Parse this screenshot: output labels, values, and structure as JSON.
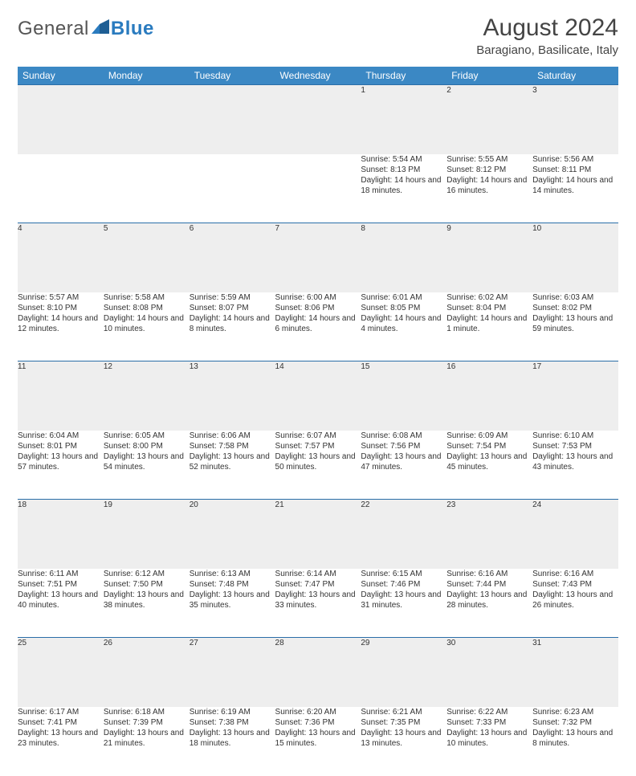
{
  "brand": {
    "general": "General",
    "blue": "Blue"
  },
  "title": "August 2024",
  "location": "Baragiano, Basilicate, Italy",
  "header_bg": "#3b88c4",
  "daynum_bg": "#eeeeee",
  "border_color": "#2a6ea8",
  "dayNames": [
    "Sunday",
    "Monday",
    "Tuesday",
    "Wednesday",
    "Thursday",
    "Friday",
    "Saturday"
  ],
  "weeks": [
    [
      null,
      null,
      null,
      null,
      {
        "n": "1",
        "sr": "5:54 AM",
        "ss": "8:13 PM",
        "dl": "Daylight: 14 hours and 18 minutes."
      },
      {
        "n": "2",
        "sr": "5:55 AM",
        "ss": "8:12 PM",
        "dl": "Daylight: 14 hours and 16 minutes."
      },
      {
        "n": "3",
        "sr": "5:56 AM",
        "ss": "8:11 PM",
        "dl": "Daylight: 14 hours and 14 minutes."
      }
    ],
    [
      {
        "n": "4",
        "sr": "5:57 AM",
        "ss": "8:10 PM",
        "dl": "Daylight: 14 hours and 12 minutes."
      },
      {
        "n": "5",
        "sr": "5:58 AM",
        "ss": "8:08 PM",
        "dl": "Daylight: 14 hours and 10 minutes."
      },
      {
        "n": "6",
        "sr": "5:59 AM",
        "ss": "8:07 PM",
        "dl": "Daylight: 14 hours and 8 minutes."
      },
      {
        "n": "7",
        "sr": "6:00 AM",
        "ss": "8:06 PM",
        "dl": "Daylight: 14 hours and 6 minutes."
      },
      {
        "n": "8",
        "sr": "6:01 AM",
        "ss": "8:05 PM",
        "dl": "Daylight: 14 hours and 4 minutes."
      },
      {
        "n": "9",
        "sr": "6:02 AM",
        "ss": "8:04 PM",
        "dl": "Daylight: 14 hours and 1 minute."
      },
      {
        "n": "10",
        "sr": "6:03 AM",
        "ss": "8:02 PM",
        "dl": "Daylight: 13 hours and 59 minutes."
      }
    ],
    [
      {
        "n": "11",
        "sr": "6:04 AM",
        "ss": "8:01 PM",
        "dl": "Daylight: 13 hours and 57 minutes."
      },
      {
        "n": "12",
        "sr": "6:05 AM",
        "ss": "8:00 PM",
        "dl": "Daylight: 13 hours and 54 minutes."
      },
      {
        "n": "13",
        "sr": "6:06 AM",
        "ss": "7:58 PM",
        "dl": "Daylight: 13 hours and 52 minutes."
      },
      {
        "n": "14",
        "sr": "6:07 AM",
        "ss": "7:57 PM",
        "dl": "Daylight: 13 hours and 50 minutes."
      },
      {
        "n": "15",
        "sr": "6:08 AM",
        "ss": "7:56 PM",
        "dl": "Daylight: 13 hours and 47 minutes."
      },
      {
        "n": "16",
        "sr": "6:09 AM",
        "ss": "7:54 PM",
        "dl": "Daylight: 13 hours and 45 minutes."
      },
      {
        "n": "17",
        "sr": "6:10 AM",
        "ss": "7:53 PM",
        "dl": "Daylight: 13 hours and 43 minutes."
      }
    ],
    [
      {
        "n": "18",
        "sr": "6:11 AM",
        "ss": "7:51 PM",
        "dl": "Daylight: 13 hours and 40 minutes."
      },
      {
        "n": "19",
        "sr": "6:12 AM",
        "ss": "7:50 PM",
        "dl": "Daylight: 13 hours and 38 minutes."
      },
      {
        "n": "20",
        "sr": "6:13 AM",
        "ss": "7:48 PM",
        "dl": "Daylight: 13 hours and 35 minutes."
      },
      {
        "n": "21",
        "sr": "6:14 AM",
        "ss": "7:47 PM",
        "dl": "Daylight: 13 hours and 33 minutes."
      },
      {
        "n": "22",
        "sr": "6:15 AM",
        "ss": "7:46 PM",
        "dl": "Daylight: 13 hours and 31 minutes."
      },
      {
        "n": "23",
        "sr": "6:16 AM",
        "ss": "7:44 PM",
        "dl": "Daylight: 13 hours and 28 minutes."
      },
      {
        "n": "24",
        "sr": "6:16 AM",
        "ss": "7:43 PM",
        "dl": "Daylight: 13 hours and 26 minutes."
      }
    ],
    [
      {
        "n": "25",
        "sr": "6:17 AM",
        "ss": "7:41 PM",
        "dl": "Daylight: 13 hours and 23 minutes."
      },
      {
        "n": "26",
        "sr": "6:18 AM",
        "ss": "7:39 PM",
        "dl": "Daylight: 13 hours and 21 minutes."
      },
      {
        "n": "27",
        "sr": "6:19 AM",
        "ss": "7:38 PM",
        "dl": "Daylight: 13 hours and 18 minutes."
      },
      {
        "n": "28",
        "sr": "6:20 AM",
        "ss": "7:36 PM",
        "dl": "Daylight: 13 hours and 15 minutes."
      },
      {
        "n": "29",
        "sr": "6:21 AM",
        "ss": "7:35 PM",
        "dl": "Daylight: 13 hours and 13 minutes."
      },
      {
        "n": "30",
        "sr": "6:22 AM",
        "ss": "7:33 PM",
        "dl": "Daylight: 13 hours and 10 minutes."
      },
      {
        "n": "31",
        "sr": "6:23 AM",
        "ss": "7:32 PM",
        "dl": "Daylight: 13 hours and 8 minutes."
      }
    ]
  ]
}
